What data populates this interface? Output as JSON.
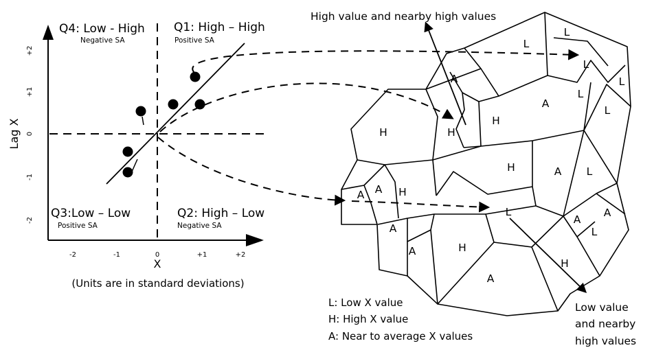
{
  "scatter": {
    "x_axis_label": "X",
    "y_axis_label": "Lag X",
    "x_ticks": [
      "-2",
      "-1",
      "0",
      "+1",
      "+2"
    ],
    "y_ticks": [
      "+2",
      "+1",
      "0",
      "-1",
      "-2"
    ],
    "units_note": "(Units are in standard deviations)",
    "quadrants": {
      "q1": {
        "title": "Q1: High – High",
        "sub": "Positive SA"
      },
      "q2": {
        "title": "Q2: High – Low",
        "sub": "Negative SA"
      },
      "q3": {
        "title": "Q3:Low – Low",
        "sub": "Positive SA"
      },
      "q4": {
        "title": "Q4: Low - High",
        "sub": "Negative SA"
      }
    }
  },
  "map": {
    "regions": [
      "L",
      "L",
      "A",
      "L",
      "L",
      "A",
      "L",
      "L",
      "H",
      "H",
      "H",
      "H",
      "A",
      "L",
      "A",
      "A",
      "H",
      "L",
      "A",
      "A",
      "A",
      "L",
      "A",
      "H",
      "H",
      "A"
    ],
    "annotations": {
      "top": "High value and nearby high values",
      "bottom": [
        "Low value",
        "and nearby",
        "high values"
      ]
    }
  },
  "legend": {
    "items": [
      "L: Low X value",
      "H: High X value",
      "A: Near to average X values"
    ]
  }
}
